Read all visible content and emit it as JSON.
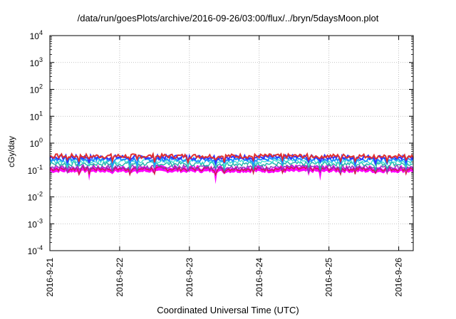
{
  "chart_data": {
    "type": "line",
    "title": "/data/run/goesPlots/archive/2016-09-26/03:00/flux/../bryn/5daysMoon.plot",
    "xlabel": "Coordinated Universal Time (UTC)",
    "ylabel": "cGy/day",
    "yscale": "log",
    "ylim": [
      0.0001,
      10000
    ],
    "xlim": [
      "2016-09-21",
      "2016-09-26 05:00"
    ],
    "x_ticks": [
      "2016-9-21",
      "2016-9-22",
      "2016-9-23",
      "2016-9-24",
      "2016-9-25",
      "2016-9-26"
    ],
    "y_ticks": [
      {
        "base": "10",
        "exp": "-4"
      },
      {
        "base": "10",
        "exp": "-3"
      },
      {
        "base": "10",
        "exp": "-2"
      },
      {
        "base": "10",
        "exp": "-1"
      },
      {
        "base": "10",
        "exp": "0"
      },
      {
        "base": "10",
        "exp": "1"
      },
      {
        "base": "10",
        "exp": "2"
      },
      {
        "base": "10",
        "exp": "3"
      },
      {
        "base": "10",
        "exp": "4"
      }
    ],
    "grid": true,
    "series": [
      {
        "color": "#ff00ff",
        "min_values": [
          0.08,
          0.06,
          0.04,
          0.07,
          0.08,
          0.07,
          0.08,
          0.09,
          0.03,
          0.07,
          0.09
        ],
        "typical": 0.12
      },
      {
        "color": "#cc2244",
        "typical": 0.11
      },
      {
        "color": "#8a3ab9",
        "typical": 0.13
      },
      {
        "color": "#20b2aa",
        "typical": 0.17
      },
      {
        "color": "#40e0d0",
        "typical": 0.21
      },
      {
        "color": "#1e90ff",
        "typical": 0.25
      },
      {
        "color": "#3030ff",
        "typical": 0.3
      },
      {
        "color": "#e03030",
        "typical": 0.33
      }
    ]
  }
}
